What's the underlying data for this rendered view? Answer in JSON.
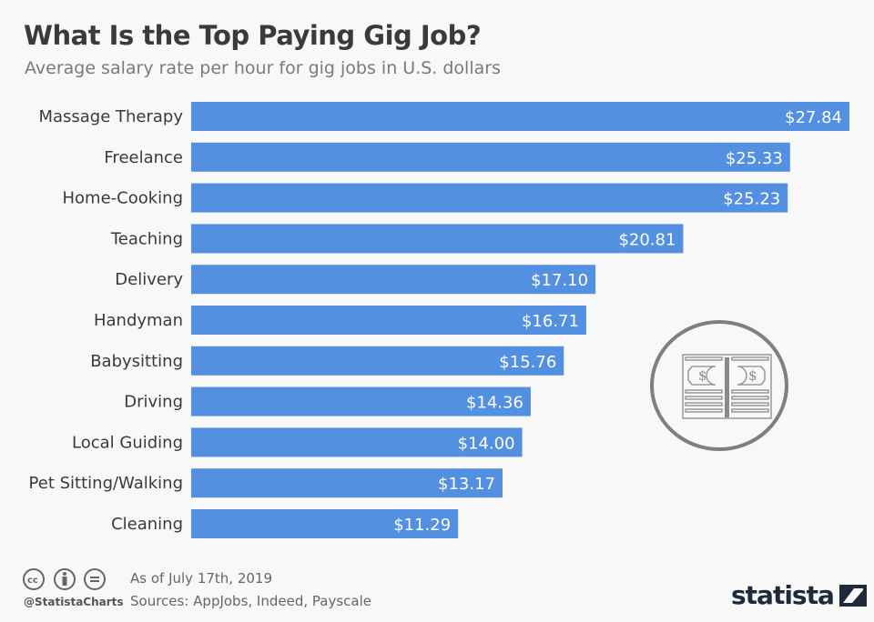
{
  "header": {
    "title": "What Is the Top Paying Gig Job?",
    "subtitle": "Average salary rate per hour for gig jobs in U.S. dollars"
  },
  "chart_data": {
    "type": "bar",
    "orientation": "horizontal",
    "categories": [
      "Massage Therapy",
      "Freelance",
      "Home-Cooking",
      "Teaching",
      "Delivery",
      "Handyman",
      "Babysitting",
      "Driving",
      "Local Guiding",
      "Pet Sitting/Walking",
      "Cleaning"
    ],
    "values": [
      27.84,
      25.33,
      25.23,
      20.81,
      17.1,
      16.71,
      15.76,
      14.36,
      14.0,
      13.17,
      11.29
    ],
    "labels": [
      "$27.84",
      "$25.33",
      "$25.23",
      "$20.81",
      "$17.10",
      "$16.71",
      "$15.76",
      "$14.36",
      "$14.00",
      "$13.17",
      "$11.29"
    ],
    "bar_color": "#5390e1",
    "grid": false,
    "xlim": [
      0,
      27.84
    ]
  },
  "illustration": {
    "icon": "money-stack-icon",
    "color": "#7f7f7f"
  },
  "footer": {
    "date": "As of July 17th, 2019",
    "sources": "Sources: AppJobs, Indeed, Payscale",
    "handle": "@StatistaCharts",
    "license_icons": [
      "cc-icon",
      "attribution-icon",
      "no-derivatives-icon"
    ],
    "logo": "statista"
  }
}
